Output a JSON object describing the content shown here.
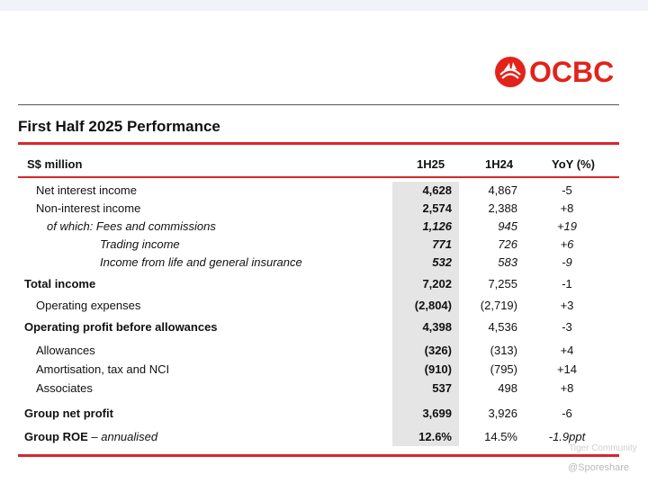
{
  "logo": {
    "text": "OCBC",
    "color": "#e2231a"
  },
  "page_title": "First Half 2025 Performance",
  "header": {
    "label": "S$ million",
    "col1": "1H25",
    "col2": "1H24",
    "col3": "YoY (%)"
  },
  "rows": [
    {
      "label": "Net interest income",
      "v1": "4,628",
      "v2": "4,867",
      "v3": "-5"
    },
    {
      "label": "Non-interest income",
      "v1": "2,574",
      "v2": "2,388",
      "v3": "+8"
    },
    {
      "label": "of which: Fees and commissions",
      "v1": "1,126",
      "v2": "945",
      "v3": "+19"
    },
    {
      "label": "Trading income",
      "v1": "771",
      "v2": "726",
      "v3": "+6"
    },
    {
      "label": "Income from life and general insurance",
      "v1": "532",
      "v2": "583",
      "v3": "-9"
    },
    {
      "label": "Total income",
      "v1": "7,202",
      "v2": "7,255",
      "v3": "-1"
    },
    {
      "label": "Operating expenses",
      "v1": "(2,804)",
      "v2": "(2,719)",
      "v3": "+3"
    },
    {
      "label": "Operating profit before allowances",
      "v1": "4,398",
      "v2": "4,536",
      "v3": "-3"
    },
    {
      "label": "Allowances",
      "v1": "(326)",
      "v2": "(313)",
      "v3": "+4"
    },
    {
      "label": "Amortisation, tax and NCI",
      "v1": "(910)",
      "v2": "(795)",
      "v3": "+14"
    },
    {
      "label": "Associates",
      "v1": "537",
      "v2": "498",
      "v3": "+8"
    },
    {
      "label": "Group net profit",
      "v1": "3,699",
      "v2": "3,926",
      "v3": "-6"
    },
    {
      "label": "Group ROE",
      "label_suffix": " – annualised",
      "v1": "12.6%",
      "v2": "14.5%",
      "v3": "-1.9ppt"
    }
  ],
  "watermark": {
    "community": "Tiger Community",
    "handle": "@Sporeshare"
  }
}
